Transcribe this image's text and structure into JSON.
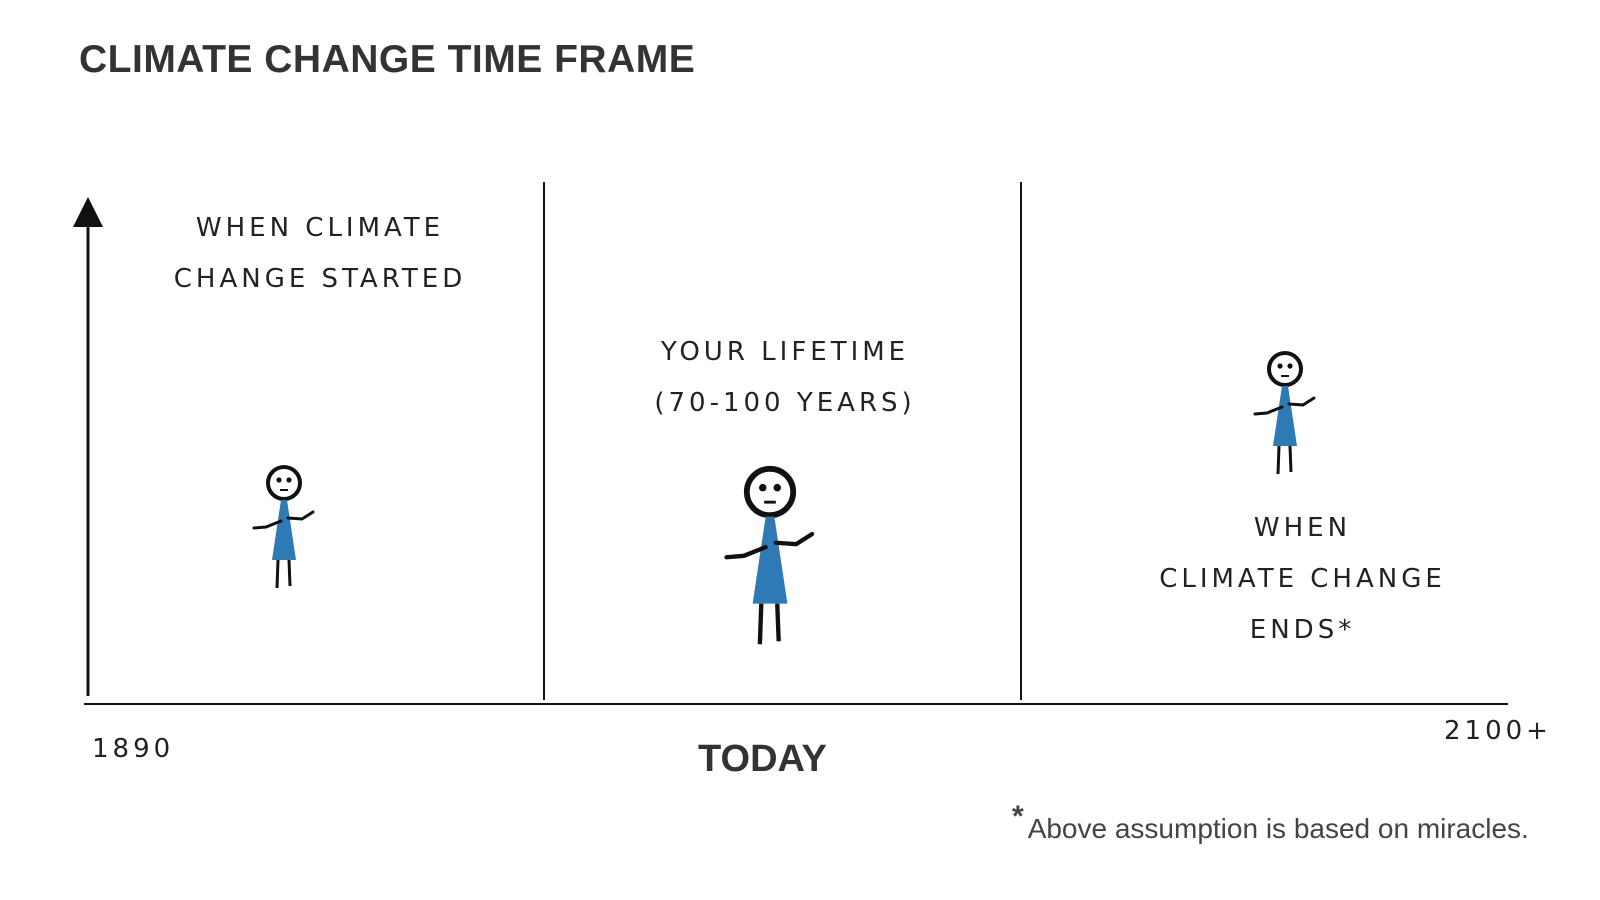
{
  "title": "CLIMATE CHANGE TIME FRAME",
  "sections": [
    {
      "label_lines": [
        "WHEN CLIMATE",
        "CHANGE STARTED"
      ]
    },
    {
      "label_lines": [
        "YOUR LIFETIME",
        "(70-100 YEARS)"
      ]
    },
    {
      "label_lines": [
        "WHEN",
        "CLIMATE CHANGE",
        "ENDS*"
      ]
    }
  ],
  "axis": {
    "start": "1890",
    "middle": "TODAY",
    "end": "2100+"
  },
  "footnote": {
    "marker": "*",
    "text": "Above assumption is based on miracles."
  },
  "colors": {
    "dress": "#2e7ab5",
    "ink": "#111111"
  }
}
